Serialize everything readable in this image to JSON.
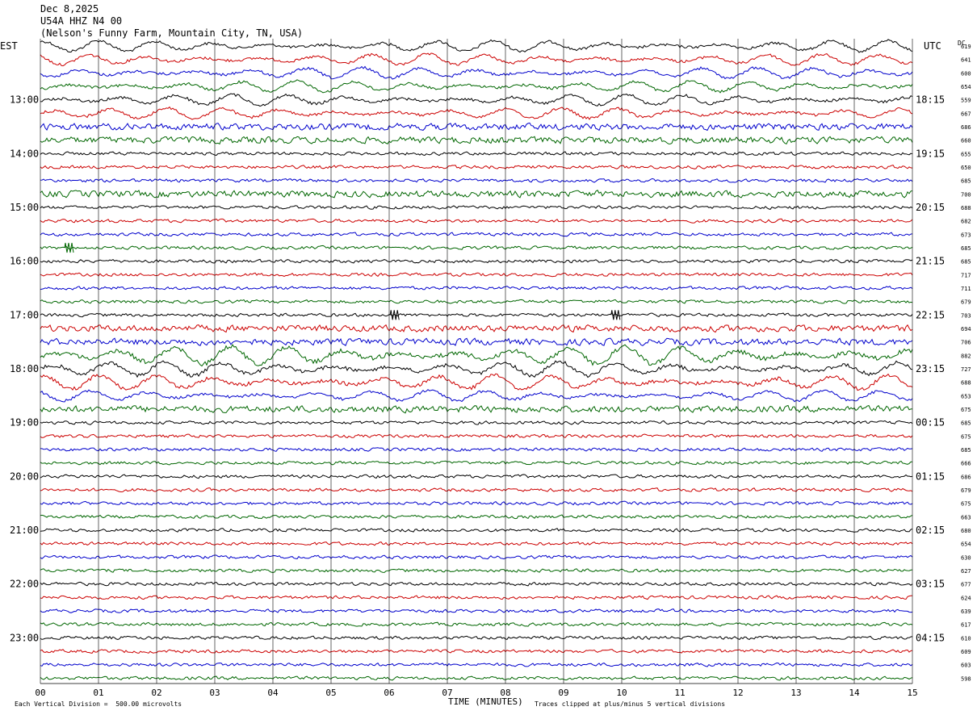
{
  "header": {
    "date": "Dec 8,2025",
    "station": "U54A HHZ N4 00",
    "location": "(Nelson's Funny Farm, Mountain City, TN, USA)"
  },
  "left_tz": "EST",
  "right_tz": "UTC",
  "dc_label": "DC",
  "footer": {
    "scale": "Each Vertical Division =  500.00 microvolts",
    "clip": "Traces clipped at plus/minus 5 vertical divisions",
    "xlabel": "TIME (MINUTES)"
  },
  "colors": [
    "#000000",
    "#cc0000",
    "#0000cc",
    "#006600"
  ],
  "chart_data": {
    "type": "line",
    "x_ticks": [
      "00",
      "01",
      "02",
      "03",
      "04",
      "05",
      "06",
      "07",
      "08",
      "09",
      "10",
      "11",
      "12",
      "13",
      "14",
      "15"
    ],
    "xlim": [
      0,
      15
    ],
    "left_hour_labels": [
      {
        "row": 4,
        "text": "13:00"
      },
      {
        "row": 8,
        "text": "14:00"
      },
      {
        "row": 12,
        "text": "15:00"
      },
      {
        "row": 16,
        "text": "16:00"
      },
      {
        "row": 20,
        "text": "17:00"
      },
      {
        "row": 24,
        "text": "18:00"
      },
      {
        "row": 28,
        "text": "19:00"
      },
      {
        "row": 32,
        "text": "20:00"
      },
      {
        "row": 36,
        "text": "21:00"
      },
      {
        "row": 40,
        "text": "22:00"
      },
      {
        "row": 44,
        "text": "23:00"
      }
    ],
    "right_hour_labels": [
      {
        "row": 0,
        "text": ""
      },
      {
        "row": 4,
        "text": "18:15"
      },
      {
        "row": 8,
        "text": "19:15"
      },
      {
        "row": 12,
        "text": "20:15"
      },
      {
        "row": 16,
        "text": "21:15"
      },
      {
        "row": 20,
        "text": "22:15"
      },
      {
        "row": 24,
        "text": "23:15"
      },
      {
        "row": 28,
        "text": "00:15"
      },
      {
        "row": 32,
        "text": "01:15"
      },
      {
        "row": 36,
        "text": "02:15"
      },
      {
        "row": 40,
        "text": "03:15"
      },
      {
        "row": 44,
        "text": "04:15"
      }
    ],
    "dc_offsets": [
      619,
      641,
      600,
      654,
      559,
      667,
      686,
      660,
      655,
      650,
      685,
      700,
      688,
      682,
      673,
      685,
      685,
      717,
      711,
      679,
      703,
      694,
      706,
      882,
      727,
      688,
      653,
      675,
      685,
      675,
      685,
      666,
      686,
      679,
      675,
      663,
      680,
      654,
      630,
      627,
      677,
      624,
      639,
      617,
      610,
      609,
      603,
      598
    ],
    "trace_amplitude_divisions": [
      3,
      3,
      3,
      3,
      3,
      3,
      2,
      2,
      1,
      1,
      1,
      2,
      1,
      1,
      1,
      1,
      1,
      1,
      1,
      1,
      1,
      2,
      2,
      5,
      4,
      4,
      3,
      2,
      1,
      1,
      1,
      1,
      1,
      1,
      1,
      1,
      1,
      1,
      1,
      1,
      1,
      1,
      1,
      1,
      1,
      1,
      1,
      1
    ],
    "events": [
      {
        "row": 15,
        "minute": 0.5,
        "note": ""
      },
      {
        "row": 20,
        "minute": 6.1,
        "note": ""
      },
      {
        "row": 20,
        "minute": 9.9,
        "note": ""
      }
    ]
  }
}
